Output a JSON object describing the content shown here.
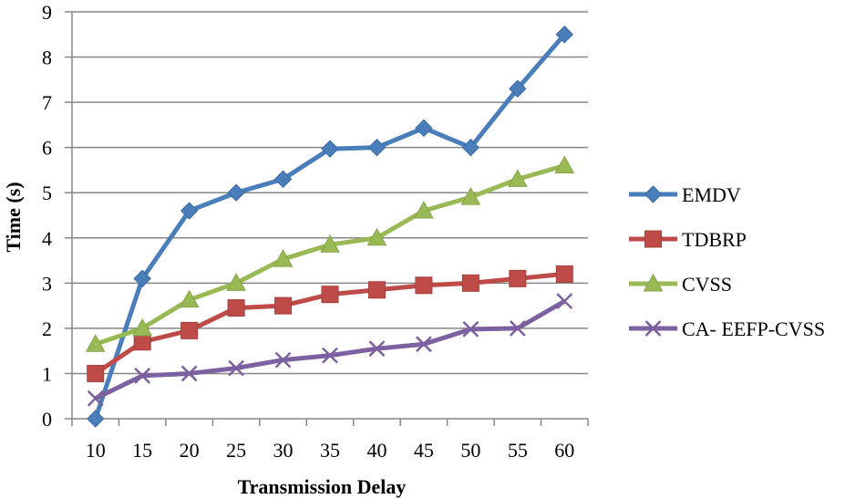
{
  "chart_data": {
    "type": "line",
    "title": "",
    "xlabel": "Transmission Delay",
    "ylabel": "Time (s)",
    "categories": [
      "10",
      "15",
      "20",
      "25",
      "30",
      "35",
      "40",
      "45",
      "50",
      "55",
      "60"
    ],
    "ylim": [
      0,
      9
    ],
    "yticks": [
      "0",
      "1",
      "2",
      "3",
      "4",
      "5",
      "6",
      "7",
      "8",
      "9"
    ],
    "grid": "horizontal",
    "legend_position": "right",
    "series": [
      {
        "name": "EMDV",
        "color": "#4a7ebb",
        "marker": "diamond",
        "values": [
          0,
          3.1,
          4.6,
          5.0,
          5.3,
          5.97,
          6.0,
          6.43,
          6.0,
          7.3,
          8.5
        ]
      },
      {
        "name": "TDBRP",
        "color": "#be4b48",
        "marker": "square",
        "values": [
          1.0,
          1.7,
          1.95,
          2.45,
          2.5,
          2.75,
          2.85,
          2.95,
          3.0,
          3.1,
          3.2
        ]
      },
      {
        "name": "CVSS",
        "color": "#98b954",
        "marker": "triangle",
        "values": [
          1.65,
          2.0,
          2.63,
          3.0,
          3.53,
          3.85,
          4.0,
          4.6,
          4.9,
          5.3,
          5.6
        ]
      },
      {
        "name": "CA- EEFP-CVSS",
        "color": "#7d60a0",
        "marker": "x",
        "values": [
          0.45,
          0.95,
          1.0,
          1.12,
          1.3,
          1.4,
          1.55,
          1.65,
          1.98,
          2.0,
          2.6
        ]
      }
    ]
  }
}
